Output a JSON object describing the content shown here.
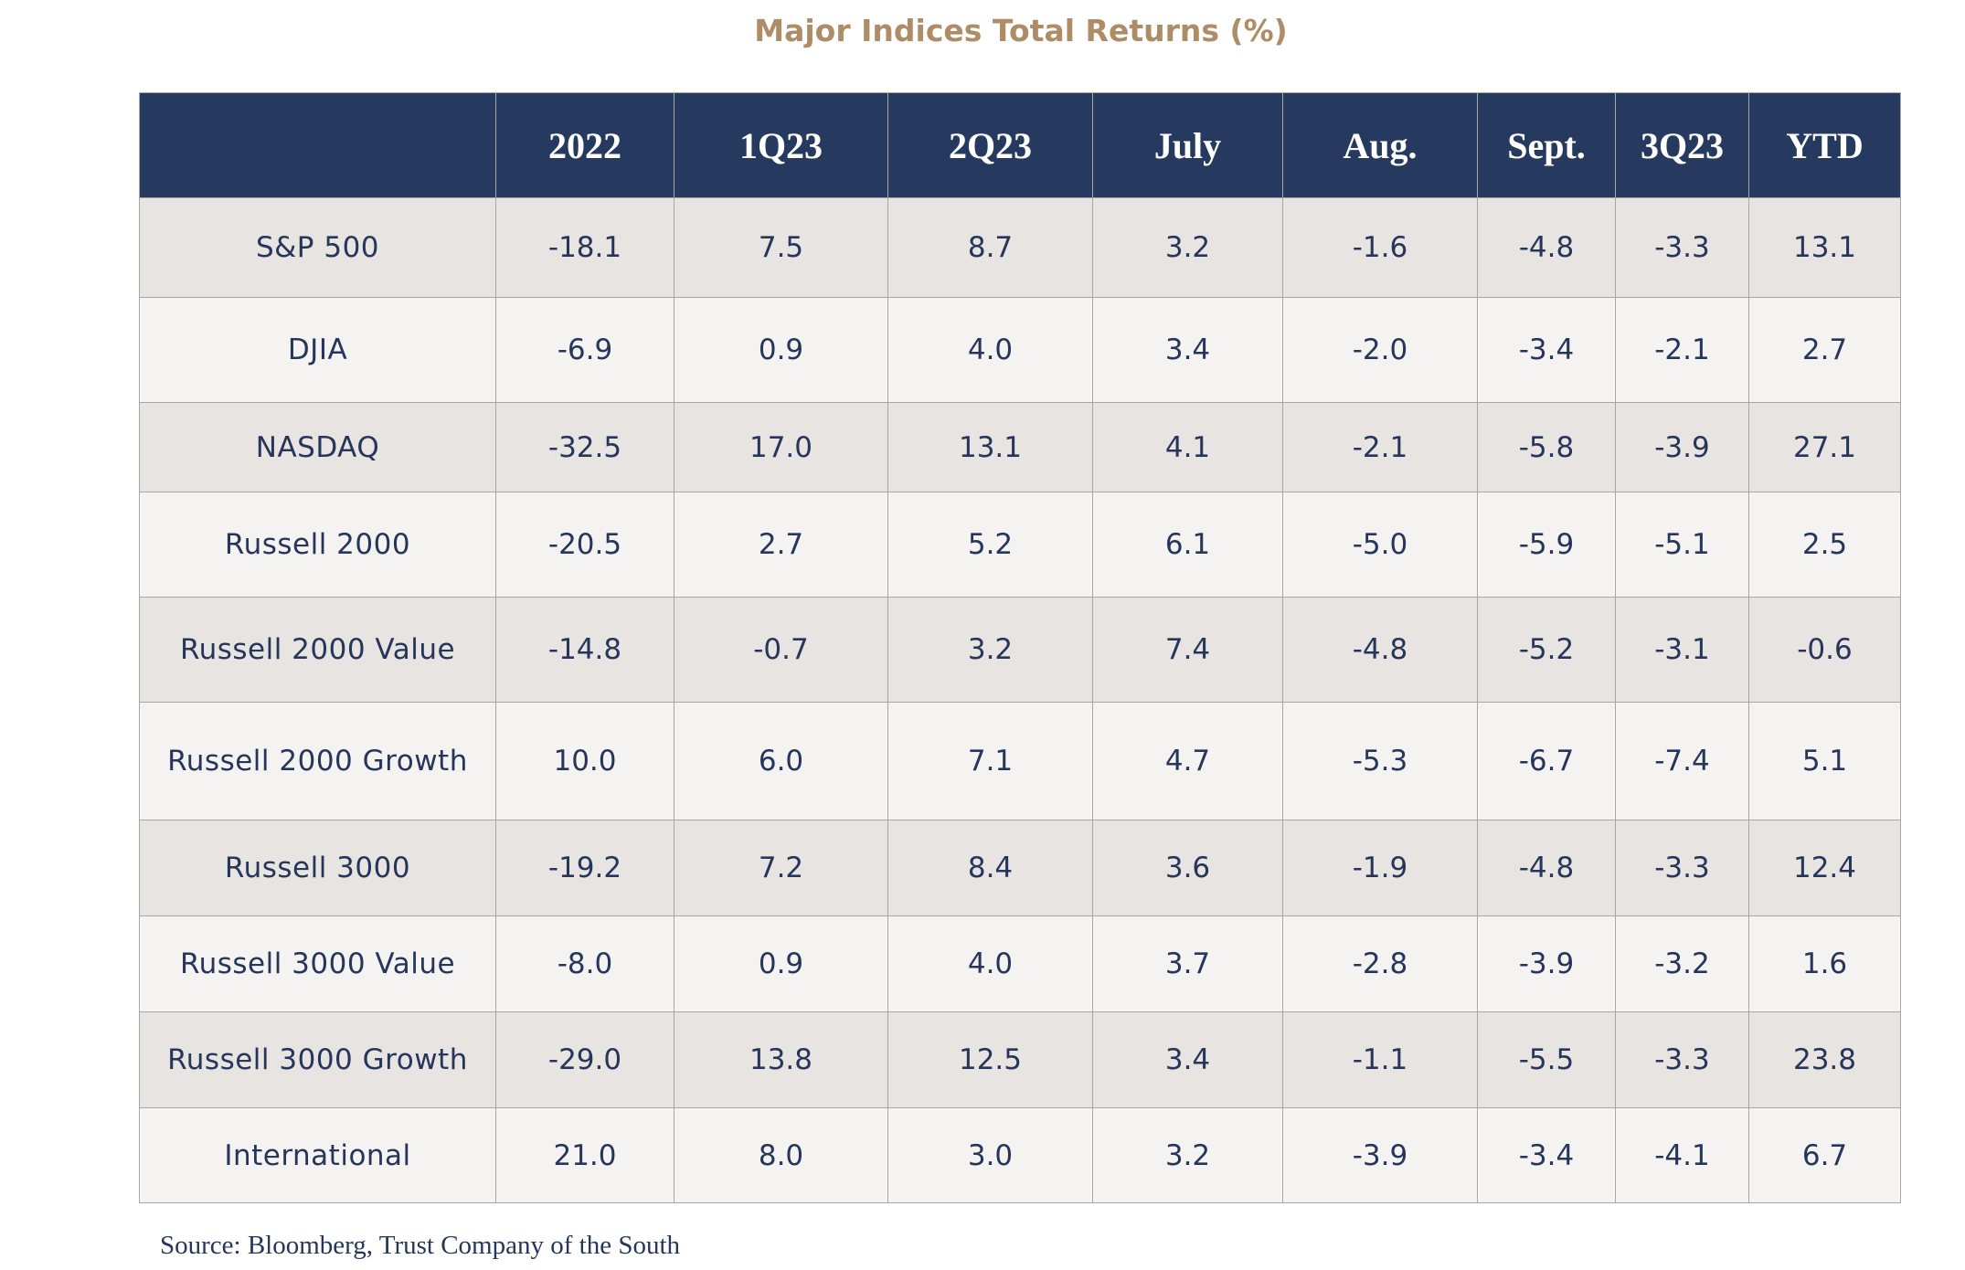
{
  "title": "Major Indices Total Returns (%)",
  "source": "Source: Bloomberg, Trust Company of the South",
  "colors": {
    "header_bg": "#263a5f",
    "title": "#ad8c66",
    "text": "#26365a",
    "row_odd": "#e8e4e1",
    "row_even": "#f4f3f1"
  },
  "chart_data": {
    "type": "table",
    "title": "Major Indices Total Returns (%)",
    "columns": [
      "",
      "2022",
      "1Q23",
      "2Q23",
      "July",
      "Aug.",
      "Sept.",
      "3Q23",
      "YTD"
    ],
    "rows": [
      [
        "S&P 500",
        "-18.1",
        "7.5",
        "8.7",
        "3.2",
        "-1.6",
        "-4.8",
        "-3.3",
        "13.1"
      ],
      [
        "DJIA",
        "-6.9",
        "0.9",
        "4.0",
        "3.4",
        "-2.0",
        "-3.4",
        "-2.1",
        "2.7"
      ],
      [
        "NASDAQ",
        "-32.5",
        "17.0",
        "13.1",
        "4.1",
        "-2.1",
        "-5.8",
        "-3.9",
        "27.1"
      ],
      [
        "Russell 2000",
        "-20.5",
        "2.7",
        "5.2",
        "6.1",
        "-5.0",
        "-5.9",
        "-5.1",
        "2.5"
      ],
      [
        "Russell 2000 Value",
        "-14.8",
        "-0.7",
        "3.2",
        "7.4",
        "-4.8",
        "-5.2",
        "-3.1",
        "-0.6"
      ],
      [
        "Russell 2000 Growth",
        "10.0",
        "6.0",
        "7.1",
        "4.7",
        "-5.3",
        "-6.7",
        "-7.4",
        "5.1"
      ],
      [
        "Russell 3000",
        "-19.2",
        "7.2",
        "8.4",
        "3.6",
        "-1.9",
        "-4.8",
        "-3.3",
        "12.4"
      ],
      [
        "Russell 3000 Value",
        "-8.0",
        "0.9",
        "4.0",
        "3.7",
        "-2.8",
        "-3.9",
        "-3.2",
        "1.6"
      ],
      [
        "Russell 3000 Growth",
        "-29.0",
        "13.8",
        "12.5",
        "3.4",
        "-1.1",
        "-5.5",
        "-3.3",
        "23.8"
      ],
      [
        "International",
        "21.0",
        "8.0",
        "3.0",
        "3.2",
        "-3.9",
        "-3.4",
        "-4.1",
        "6.7"
      ]
    ]
  }
}
